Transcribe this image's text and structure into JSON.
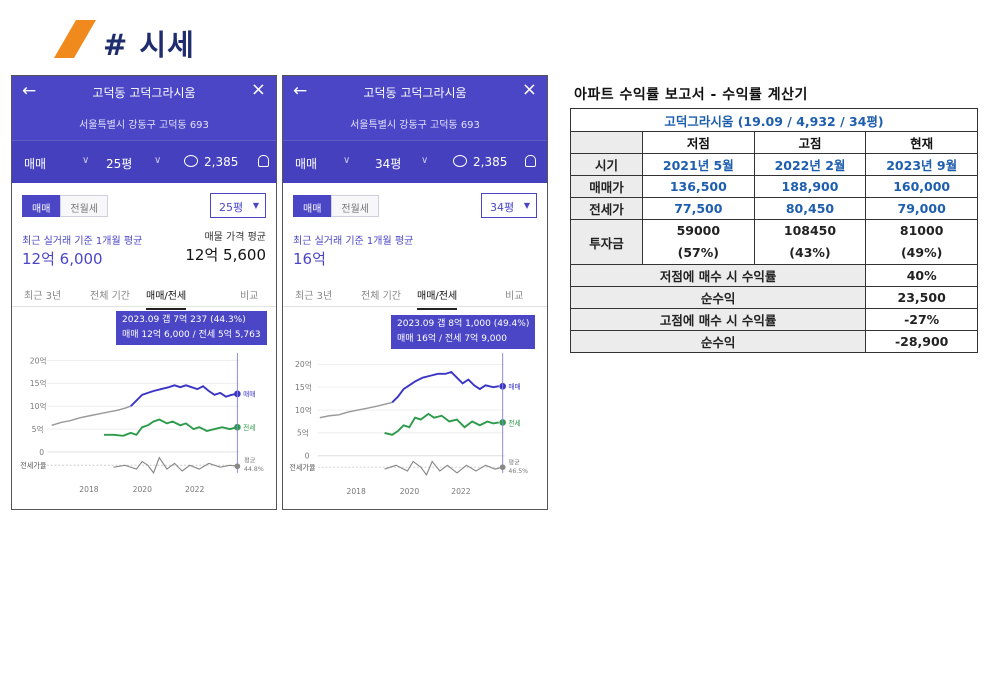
{
  "section": {
    "title": "# 시세"
  },
  "phones": [
    {
      "title": "고덕동 고덕그라시움",
      "address": "서울특별시 강동구 고덕동 693",
      "trade_type": "매매",
      "size": "25평",
      "comments": "2,385",
      "toggle_on": "매매",
      "toggle_off": "전월세",
      "size_select": "25평",
      "avg_label": "최근 실거래 기준 1개월 평균",
      "avg_value": "12억 6,000",
      "ask_label": "매물 가격 평균",
      "ask_value": "12억 5,600",
      "tabs": [
        "최근 3년",
        "전체 기간",
        "매매/전세",
        "비교"
      ],
      "tooltip_line1": "2023.09  갭 7억 237 (44.3%)",
      "tooltip_line2": "매매 12억 6,000 / 전세 5억 5,763",
      "chart_data": {
        "type": "line",
        "x_ticks": [
          "2018",
          "2020",
          "2022"
        ],
        "y_ticks": [
          "20억",
          "15억",
          "10억",
          "5억",
          "0"
        ],
        "ylabel_lower": "전세가율",
        "series": [
          {
            "name": "매매",
            "color": "#3a35c4"
          },
          {
            "name": "전세",
            "color": "#2e9a4c"
          }
        ],
        "ratio_label": "평균",
        "ratio_value": "44.8%"
      }
    },
    {
      "title": "고덕동 고덕그라시움",
      "address": "서울특별시 강동구 고덕동 693",
      "trade_type": "매매",
      "size": "34평",
      "comments": "2,385",
      "toggle_on": "매매",
      "toggle_off": "전월세",
      "size_select": "34평",
      "avg_label": "최근 실거래 기준 1개월 평균",
      "avg_value": "16억",
      "tabs": [
        "최근 3년",
        "전체 기간",
        "매매/전세",
        "비교"
      ],
      "tooltip_line1": "2023.09  갭 8억 1,000 (49.4%)",
      "tooltip_line2": "매매 16억 / 전세 7억 9,000",
      "chart_data": {
        "type": "line",
        "x_ticks": [
          "2018",
          "2020",
          "2022"
        ],
        "y_ticks": [
          "20억",
          "15억",
          "10억",
          "5억",
          "0"
        ],
        "ylabel_lower": "전세가율",
        "series": [
          {
            "name": "매매",
            "color": "#3a35c4"
          },
          {
            "name": "전세",
            "color": "#2e9a4c"
          }
        ],
        "ratio_label": "평균",
        "ratio_value": "46.5%"
      }
    }
  ],
  "report": {
    "heading": "아파트 수익률 보고서 - 수익률 계산기",
    "table_title": "고덕그라시움 (19.09 / 4,932 / 34평)",
    "columns": [
      "저점",
      "고점",
      "현재"
    ],
    "rows": {
      "period": {
        "label": "시기",
        "values": [
          "2021년 5월",
          "2022년 2월",
          "2023년 9월"
        ]
      },
      "sale": {
        "label": "매매가",
        "values": [
          "136,500",
          "188,900",
          "160,000"
        ]
      },
      "jeonse": {
        "label": "전세가",
        "values": [
          "77,500",
          "80,450",
          "79,000"
        ]
      },
      "invest": {
        "label": "투자금",
        "values": [
          "59000",
          "108450",
          "81000"
        ],
        "ratios": [
          "(57%)",
          "(43%)",
          "(49%)"
        ]
      }
    },
    "summary": [
      {
        "label": "저점에 매수 시 수익률",
        "value": "40%"
      },
      {
        "label": "순수익",
        "value": "23,500"
      },
      {
        "label": "고점에 매수 시 수익률",
        "value": "-27%"
      },
      {
        "label": "순수익",
        "value": "-28,900"
      }
    ]
  }
}
